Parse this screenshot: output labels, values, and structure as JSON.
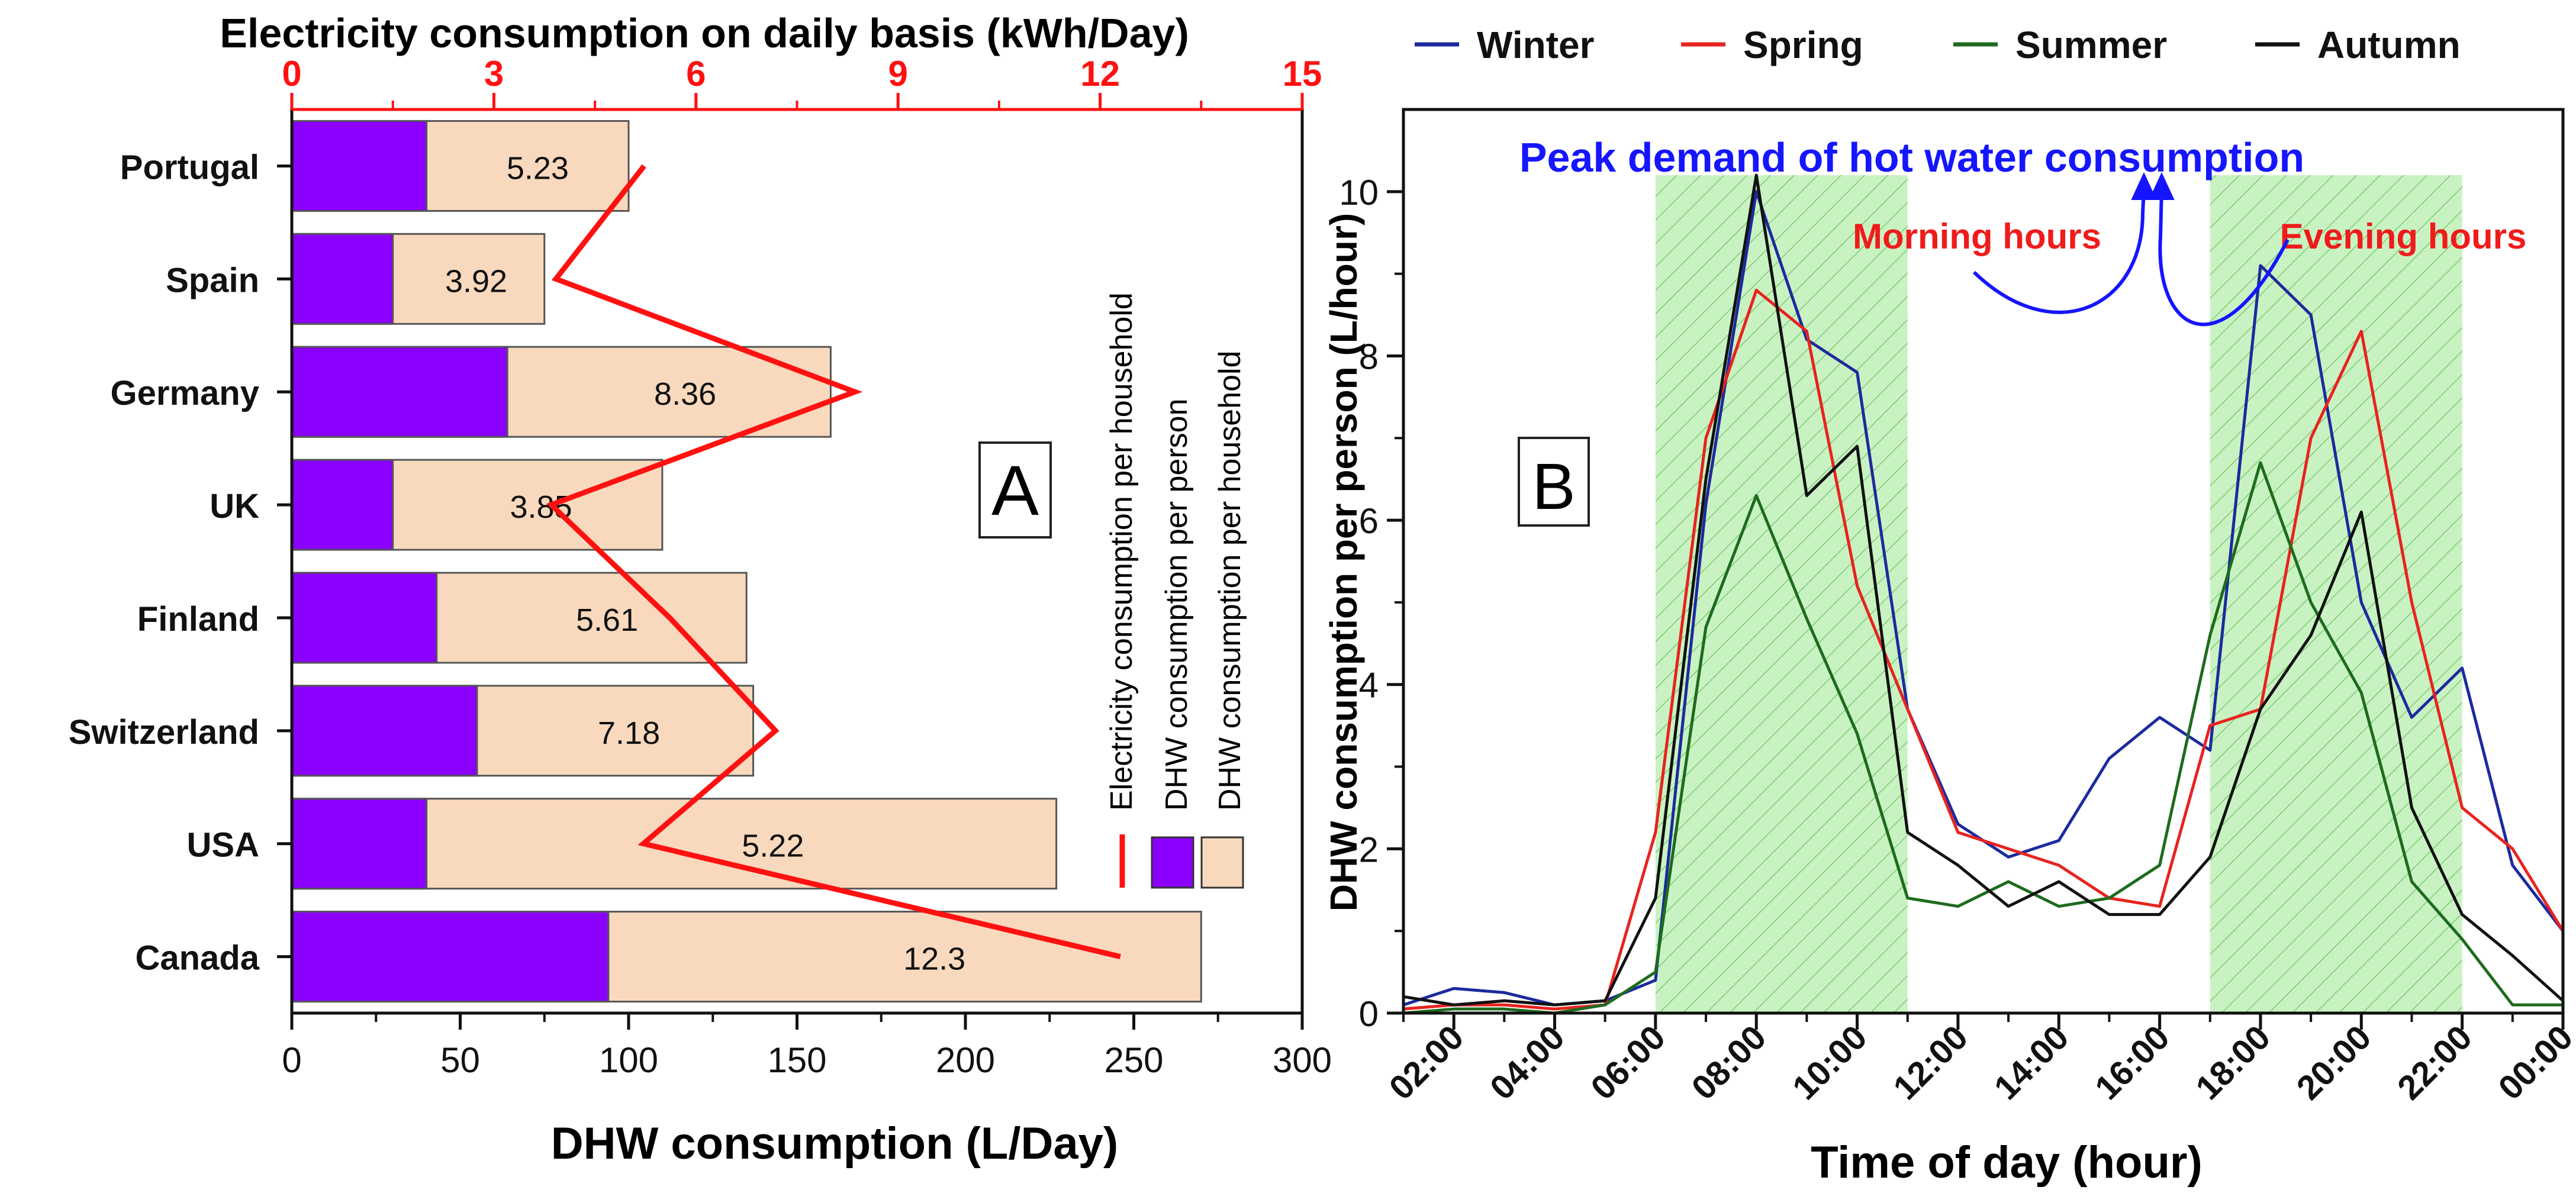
{
  "colors": {
    "per_person": "#8B00FF",
    "per_household": "#F9D9BD",
    "electricity": "#FF1111",
    "winter": "#1C2A9E",
    "spring": "#E8231E",
    "summer": "#1E6B1E",
    "autumn": "#111111",
    "peak_shade": "#C9F2C2",
    "peak_hatch": "#7CCB72",
    "annotation_blue": "#1515FF",
    "annotation_red": "#F01B1B"
  },
  "chart_data": [
    {
      "type": "bar",
      "panel_label": "A",
      "orientation": "horizontal",
      "categories": [
        "Portugal",
        "Spain",
        "Germany",
        "UK",
        "Finland",
        "Switzerland",
        "USA",
        "Canada"
      ],
      "series": [
        {
          "name": "DHW consumption per household",
          "values": [
            100,
            75,
            160,
            110,
            135,
            137,
            227,
            270
          ]
        },
        {
          "name": "DHW consumption per person",
          "values": [
            40,
            30,
            64,
            30,
            43,
            55,
            40,
            94
          ]
        },
        {
          "name": "Electricity consumption per household",
          "axis": "top",
          "values": [
            5.23,
            3.92,
            8.36,
            3.85,
            5.61,
            7.18,
            5.22,
            12.3
          ]
        }
      ],
      "data_labels": [
        "5.23",
        "3.92",
        "8.36",
        "3.85",
        "5.61",
        "7.18",
        "5.22",
        "12.3"
      ],
      "xlabel": "DHW consumption (L/Day)",
      "xlim": [
        0,
        300
      ],
      "x_ticks": [
        "0",
        "50",
        "100",
        "150",
        "200",
        "250",
        "300"
      ],
      "x2label": "Electricity consumption on daily basis (kWh/Day)",
      "x2lim": [
        0,
        15
      ],
      "x2_ticks": [
        "0",
        "3",
        "6",
        "9",
        "12",
        "15"
      ],
      "legend": [
        "Electricity consumption per household",
        "DHW consumption per person",
        "DHW consumption per household"
      ],
      "legend_position": "right"
    },
    {
      "type": "line",
      "panel_label": "B",
      "x": [
        1,
        2,
        3,
        4,
        5,
        6,
        7,
        8,
        9,
        10,
        11,
        12,
        13,
        14,
        15,
        16,
        17,
        18,
        19,
        20,
        21,
        22,
        23,
        24
      ],
      "x_ticks": [
        "02:00",
        "04:00",
        "06:00",
        "08:00",
        "10:00",
        "12:00",
        "14:00",
        "16:00",
        "18:00",
        "20:00",
        "22:00",
        "00:00"
      ],
      "x_tick_values": [
        2,
        4,
        6,
        8,
        10,
        12,
        14,
        16,
        18,
        20,
        22,
        24
      ],
      "series": [
        {
          "name": "Winter",
          "values": [
            0.1,
            0.3,
            0.25,
            0.1,
            0.15,
            0.4,
            6.2,
            10.0,
            8.2,
            7.8,
            3.7,
            2.3,
            1.9,
            2.1,
            3.1,
            3.6,
            3.2,
            9.1,
            8.5,
            5.0,
            3.6,
            4.2,
            1.8,
            1.0
          ]
        },
        {
          "name": "Spring",
          "values": [
            0.05,
            0.1,
            0.1,
            0.05,
            0.1,
            2.2,
            7.0,
            8.8,
            8.3,
            5.2,
            3.7,
            2.2,
            2.0,
            1.8,
            1.4,
            1.3,
            3.5,
            3.7,
            7.0,
            8.3,
            5.0,
            2.5,
            2.0,
            1.0
          ]
        },
        {
          "name": "Summer",
          "values": [
            0.0,
            0.05,
            0.05,
            0.0,
            0.1,
            0.5,
            4.7,
            6.3,
            4.8,
            3.4,
            1.4,
            1.3,
            1.6,
            1.3,
            1.4,
            1.8,
            4.6,
            6.7,
            5.0,
            3.9,
            1.6,
            0.9,
            0.1,
            0.1
          ]
        },
        {
          "name": "Autumn",
          "values": [
            0.2,
            0.1,
            0.15,
            0.1,
            0.15,
            1.4,
            6.5,
            10.2,
            6.3,
            6.9,
            2.2,
            1.8,
            1.3,
            1.6,
            1.2,
            1.2,
            1.9,
            3.7,
            4.6,
            6.1,
            2.5,
            1.2,
            0.7,
            0.15
          ]
        }
      ],
      "title": "",
      "xlabel": "Time of day (hour)",
      "ylabel": "DHW consumption per person (L/hour)",
      "xlim": [
        1,
        24
      ],
      "ylim": [
        0,
        11
      ],
      "y_ticks": [
        "0",
        "2",
        "4",
        "6",
        "8",
        "10"
      ],
      "shaded_ranges": [
        {
          "name": "Morning hours",
          "x_from": 6,
          "x_to": 11
        },
        {
          "name": "Evening hours",
          "x_from": 17,
          "x_to": 22
        }
      ],
      "annotations": [
        "Peak demand of hot water consumption",
        "Morning hours",
        "Evening hours"
      ],
      "legend_position": "top"
    }
  ]
}
